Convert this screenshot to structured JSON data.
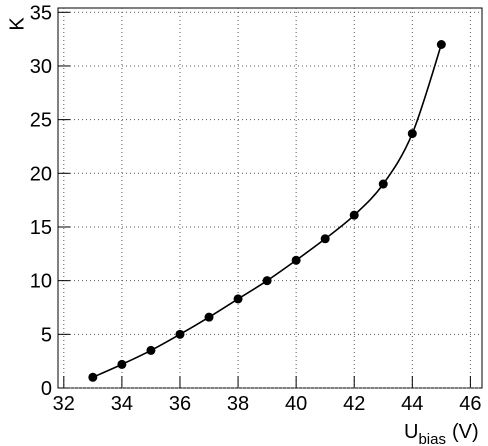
{
  "chart_data": {
    "type": "line",
    "y_label": "K",
    "x_label": {
      "main": "U",
      "sub": "bias",
      "unit": "(V)"
    },
    "x": [
      33,
      34,
      35,
      36,
      37,
      38,
      39,
      40,
      41,
      42,
      43,
      44,
      45
    ],
    "series": [
      {
        "color": "#000000",
        "values": [
          1.0,
          2.2,
          3.5,
          5.0,
          6.6,
          8.3,
          10.0,
          11.9,
          13.9,
          16.1,
          19.0,
          23.7,
          32.0
        ]
      }
    ],
    "xlim": [
      31.8,
      46.4
    ],
    "xticks": [
      32,
      34,
      36,
      38,
      40,
      42,
      44,
      46
    ],
    "ylim": [
      0,
      35.4
    ],
    "yticks": [
      0,
      5,
      10,
      15,
      20,
      25,
      30,
      35
    ],
    "grid": true,
    "markers": true,
    "smooth": true
  }
}
